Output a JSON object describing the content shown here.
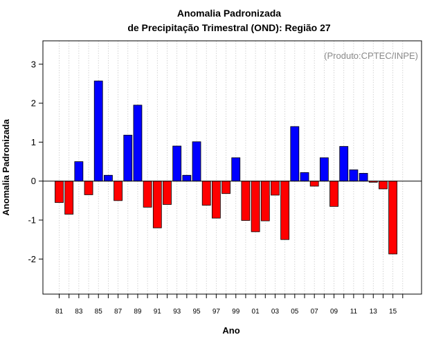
{
  "chart_data": {
    "type": "bar",
    "title": "Anomalia Padronizada",
    "subtitle": "de Precipitação Trimestral (OND): Região 27",
    "xlabel": "Ano",
    "ylabel": "Anomalia Padronizada",
    "source_note": "(Produto:CPTEC/INPE)",
    "ylim": [
      -2.9,
      3.6
    ],
    "yticks": [
      -2,
      -1,
      0,
      1,
      2,
      3
    ],
    "ytick_labels": [
      "-2",
      "-1",
      "0",
      "1",
      "2",
      "3"
    ],
    "categories": [
      "81",
      "82",
      "83",
      "84",
      "85",
      "86",
      "87",
      "88",
      "89",
      "90",
      "91",
      "92",
      "93",
      "94",
      "95",
      "96",
      "97",
      "98",
      "99",
      "00",
      "01",
      "02",
      "03",
      "04",
      "05",
      "06",
      "07",
      "08",
      "09",
      "10",
      "11",
      "12",
      "13",
      "14",
      "15"
    ],
    "xtick_labels": [
      "81",
      "83",
      "85",
      "87",
      "89",
      "91",
      "93",
      "95",
      "97",
      "99",
      "01",
      "03",
      "05",
      "07",
      "09",
      "11",
      "13",
      "15"
    ],
    "values": [
      -0.55,
      -0.85,
      0.5,
      -0.35,
      2.57,
      0.15,
      -0.5,
      1.18,
      1.95,
      -0.67,
      -1.2,
      -0.6,
      0.9,
      0.15,
      1.01,
      -0.62,
      -0.95,
      -0.32,
      0.6,
      -1.01,
      -1.3,
      -1.02,
      -0.36,
      -1.5,
      1.4,
      0.22,
      -0.13,
      0.6,
      -0.65,
      0.89,
      0.29,
      0.2,
      -0.03,
      -0.2,
      -1.87
    ],
    "colors": {
      "positive": "#0000ff",
      "negative": "#ff0000",
      "grid": "#c8c8c8",
      "zero_line": "#000000"
    },
    "grid": true
  }
}
